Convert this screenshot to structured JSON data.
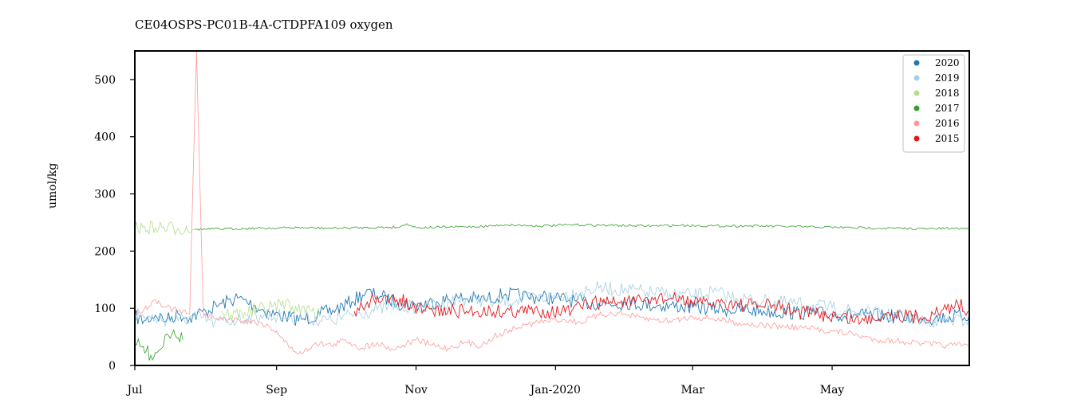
{
  "chart_data": {
    "type": "line",
    "title": "CE04OSPS-PC01B-4A-CTDPFA109 oxygen",
    "xlabel": "",
    "ylabel": "umol/kg",
    "ylim": [
      0,
      550
    ],
    "xlim": [
      "2019-07-01",
      "2020-06-30"
    ],
    "grid": false,
    "legend_position": "top-right",
    "x_ticks": [
      {
        "date": "2019-07-01",
        "label": "Jul"
      },
      {
        "date": "2019-09-01",
        "label": "Sep"
      },
      {
        "date": "2019-11-01",
        "label": "Nov"
      },
      {
        "date": "2020-01-01",
        "label": "Jan-2020"
      },
      {
        "date": "2020-03-01",
        "label": "Mar"
      },
      {
        "date": "2020-05-01",
        "label": "May"
      }
    ],
    "y_ticks": [
      0,
      100,
      200,
      300,
      400,
      500
    ],
    "series": [
      {
        "name": "2020",
        "color": "#1f78b4",
        "points": [
          [
            "2019-07-01",
            85
          ],
          [
            "2019-07-05",
            78
          ],
          [
            "2019-07-10",
            88
          ],
          [
            "2019-07-15",
            80
          ],
          [
            "2019-07-20",
            90
          ],
          [
            "2019-07-25",
            84
          ],
          [
            "2019-08-01",
            95
          ],
          [
            "2019-08-08",
            108
          ],
          [
            "2019-08-15",
            118
          ],
          [
            "2019-08-22",
            105
          ],
          [
            "2019-08-29",
            92
          ],
          [
            "2019-09-05",
            85
          ],
          [
            "2019-09-12",
            80
          ],
          [
            "2019-09-20",
            90
          ],
          [
            "2019-09-27",
            98
          ],
          [
            "2019-10-04",
            112
          ],
          [
            "2019-10-10",
            128
          ],
          [
            "2019-10-17",
            120
          ],
          [
            "2019-10-24",
            110
          ],
          [
            "2019-11-01",
            105
          ],
          [
            "2019-11-10",
            112
          ],
          [
            "2019-11-20",
            118
          ],
          [
            "2019-12-01",
            115
          ],
          [
            "2019-12-10",
            125
          ],
          [
            "2019-12-20",
            120
          ],
          [
            "2020-01-01",
            118
          ],
          [
            "2020-01-10",
            112
          ],
          [
            "2020-01-20",
            108
          ],
          [
            "2020-02-01",
            110
          ],
          [
            "2020-02-15",
            105
          ],
          [
            "2020-03-01",
            102
          ],
          [
            "2020-03-15",
            98
          ],
          [
            "2020-04-01",
            95
          ],
          [
            "2020-04-15",
            92
          ],
          [
            "2020-05-01",
            90
          ],
          [
            "2020-05-15",
            88
          ],
          [
            "2020-06-01",
            85
          ],
          [
            "2020-06-15",
            82
          ],
          [
            "2020-06-30",
            88
          ]
        ]
      },
      {
        "name": "2019",
        "color": "#a6cee3",
        "points": [
          [
            "2019-07-01",
            88
          ],
          [
            "2019-07-10",
            82
          ],
          [
            "2019-07-20",
            78
          ],
          [
            "2019-07-28",
            85
          ],
          [
            "2019-08-05",
            75
          ],
          [
            "2019-08-15",
            80
          ],
          [
            "2019-08-25",
            88
          ],
          [
            "2019-09-05",
            85
          ],
          [
            "2019-09-15",
            82
          ],
          [
            "2019-09-25",
            78
          ],
          [
            "2019-10-05",
            90
          ],
          [
            "2019-10-15",
            98
          ],
          [
            "2019-10-25",
            105
          ],
          [
            "2019-11-05",
            100
          ],
          [
            "2019-11-15",
            112
          ],
          [
            "2019-11-25",
            118
          ],
          [
            "2019-12-05",
            110
          ],
          [
            "2019-12-15",
            115
          ],
          [
            "2020-01-01",
            120
          ],
          [
            "2020-01-10",
            128
          ],
          [
            "2020-01-20",
            135
          ],
          [
            "2020-02-01",
            132
          ],
          [
            "2020-02-10",
            128
          ],
          [
            "2020-02-20",
            125
          ],
          [
            "2020-03-01",
            122
          ],
          [
            "2020-03-10",
            128
          ],
          [
            "2020-03-20",
            118
          ],
          [
            "2020-04-01",
            112
          ],
          [
            "2020-04-15",
            108
          ],
          [
            "2020-05-01",
            100
          ],
          [
            "2020-05-15",
            92
          ],
          [
            "2020-06-01",
            85
          ],
          [
            "2020-06-15",
            78
          ],
          [
            "2020-06-30",
            80
          ]
        ]
      },
      {
        "name": "2018",
        "color": "#b2df8a",
        "points": [
          [
            "2019-07-01",
            240
          ],
          [
            "2019-07-10",
            241
          ],
          [
            "2019-07-20",
            240
          ],
          [
            "2019-07-27",
            238
          ],
          [
            "2019-08-05",
            null
          ],
          [
            "2019-08-08",
            95
          ],
          [
            "2019-08-12",
            88
          ],
          [
            "2019-08-18",
            92
          ],
          [
            "2019-08-24",
            98
          ],
          [
            "2019-08-30",
            102
          ],
          [
            "2019-09-05",
            110
          ],
          [
            "2019-09-10",
            95
          ],
          [
            "2019-09-15",
            105
          ],
          [
            "2019-09-20",
            85
          ]
        ]
      },
      {
        "name": "2017",
        "color": "#33a02c",
        "points": [
          [
            "2019-07-01",
            38
          ],
          [
            "2019-07-04",
            32
          ],
          [
            "2019-07-08",
            18
          ],
          [
            "2019-07-12",
            28
          ],
          [
            "2019-07-15",
            55
          ],
          [
            "2019-07-18",
            62
          ],
          [
            "2019-07-22",
            45
          ],
          [
            "2019-07-25",
            null
          ],
          [
            "2019-07-27",
            238
          ],
          [
            "2019-08-10",
            239
          ],
          [
            "2019-08-25",
            240
          ],
          [
            "2019-09-10",
            241
          ],
          [
            "2019-09-25",
            240
          ],
          [
            "2019-10-10",
            241
          ],
          [
            "2019-10-25",
            242
          ],
          [
            "2019-10-28",
            248
          ],
          [
            "2019-11-01",
            241
          ],
          [
            "2019-11-15",
            242
          ],
          [
            "2019-11-30",
            243
          ],
          [
            "2019-12-10",
            246
          ],
          [
            "2019-12-25",
            244
          ],
          [
            "2020-01-10",
            246
          ],
          [
            "2020-01-25",
            245
          ],
          [
            "2020-02-10",
            244
          ],
          [
            "2020-02-25",
            245
          ],
          [
            "2020-03-10",
            244
          ],
          [
            "2020-03-25",
            244
          ],
          [
            "2020-04-10",
            243
          ],
          [
            "2020-04-25",
            242
          ],
          [
            "2020-05-10",
            241
          ],
          [
            "2020-05-25",
            240
          ],
          [
            "2020-06-10",
            239
          ],
          [
            "2020-06-30",
            240
          ]
        ]
      },
      {
        "name": "2016",
        "color": "#fb9a99",
        "points": [
          [
            "2019-07-01",
            92
          ],
          [
            "2019-07-05",
            98
          ],
          [
            "2019-07-10",
            115
          ],
          [
            "2019-07-15",
            102
          ],
          [
            "2019-07-20",
            95
          ],
          [
            "2019-07-25",
            90
          ],
          [
            "2019-07-28",
            550
          ],
          [
            "2019-07-31",
            88
          ],
          [
            "2019-08-06",
            82
          ],
          [
            "2019-08-15",
            80
          ],
          [
            "2019-08-25",
            75
          ],
          [
            "2019-09-01",
            60
          ],
          [
            "2019-09-07",
            30
          ],
          [
            "2019-09-12",
            20
          ],
          [
            "2019-09-18",
            40
          ],
          [
            "2019-09-25",
            35
          ],
          [
            "2019-10-01",
            45
          ],
          [
            "2019-10-08",
            30
          ],
          [
            "2019-10-15",
            40
          ],
          [
            "2019-10-22",
            28
          ],
          [
            "2019-11-01",
            45
          ],
          [
            "2019-11-08",
            35
          ],
          [
            "2019-11-15",
            30
          ],
          [
            "2019-11-22",
            40
          ],
          [
            "2019-11-30",
            35
          ],
          [
            "2019-12-05",
            50
          ],
          [
            "2019-12-12",
            62
          ],
          [
            "2019-12-20",
            72
          ],
          [
            "2019-12-28",
            78
          ],
          [
            "2020-01-05",
            80
          ],
          [
            "2020-01-12",
            75
          ],
          [
            "2020-01-20",
            88
          ],
          [
            "2020-01-28",
            92
          ],
          [
            "2020-02-05",
            85
          ],
          [
            "2020-02-12",
            80
          ],
          [
            "2020-02-20",
            78
          ],
          [
            "2020-03-01",
            85
          ],
          [
            "2020-03-10",
            82
          ],
          [
            "2020-03-20",
            75
          ],
          [
            "2020-04-01",
            70
          ],
          [
            "2020-04-10",
            68
          ],
          [
            "2020-04-20",
            65
          ],
          [
            "2020-05-01",
            60
          ],
          [
            "2020-05-10",
            55
          ],
          [
            "2020-05-20",
            45
          ],
          [
            "2020-06-01",
            42
          ],
          [
            "2020-06-10",
            38
          ],
          [
            "2020-06-20",
            35
          ],
          [
            "2020-06-30",
            35
          ]
        ]
      },
      {
        "name": "2015",
        "color": "#e31a1c",
        "points": [
          [
            "2019-10-05",
            95
          ],
          [
            "2019-10-10",
            105
          ],
          [
            "2019-10-15",
            122
          ],
          [
            "2019-10-20",
            110
          ],
          [
            "2019-10-25",
            118
          ],
          [
            "2019-10-30",
            100
          ],
          [
            "2019-11-05",
            95
          ],
          [
            "2020-01-08",
            95
          ],
          [
            "2020-01-15",
            108
          ],
          [
            "2020-01-25",
            112
          ],
          [
            "2020-02-05",
            110
          ],
          [
            "2020-02-15",
            118
          ],
          [
            "2020-02-25",
            115
          ],
          [
            "2020-03-05",
            108
          ],
          [
            "2020-03-15",
            110
          ],
          [
            "2020-03-25",
            105
          ],
          [
            "2020-04-05",
            105
          ],
          [
            "2020-04-15",
            95
          ],
          [
            "2020-04-25",
            90
          ],
          [
            "2020-05-05",
            85
          ],
          [
            "2020-05-15",
            78
          ],
          [
            "2020-05-25",
            92
          ],
          [
            "2020-06-05",
            85
          ],
          [
            "2020-06-15",
            90
          ],
          [
            "2020-06-25",
            108
          ],
          [
            "2020-06-30",
            95
          ]
        ]
      }
    ]
  }
}
